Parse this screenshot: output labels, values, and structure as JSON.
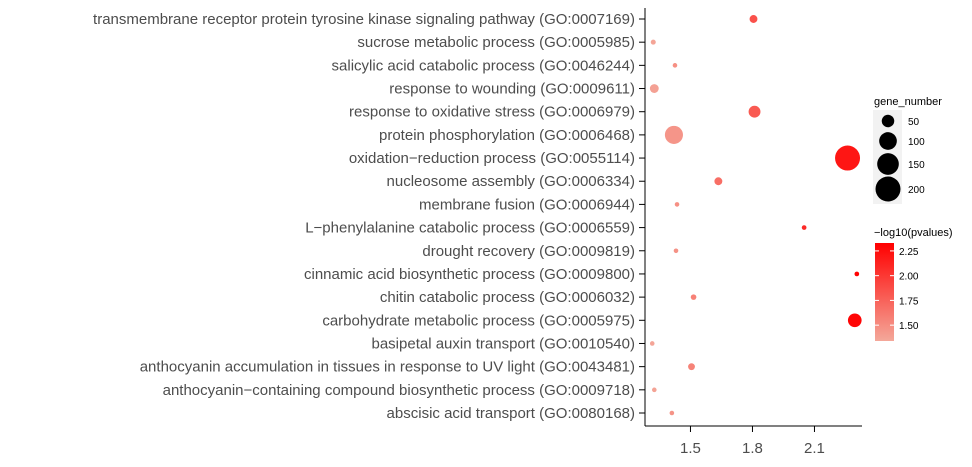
{
  "chart_data": {
    "type": "scatter",
    "title": "",
    "xlabel": "",
    "ylabel": "",
    "xlim": [
      1.28,
      2.33
    ],
    "x_ticks": [
      "1.5",
      "1.8",
      "2.1"
    ],
    "x_tick_values": [
      1.5,
      1.8,
      2.1
    ],
    "grid": false,
    "legend_placement": "right",
    "color_low": "#f4a89a",
    "color_high": "#ff0000",
    "terms": [
      {
        "label": "transmembrane receptor protein tyrosine kinase signaling pathway (GO:0007169)",
        "x": 1.805,
        "gene_number": 20,
        "log10p": 1.85
      },
      {
        "label": "sucrose metabolic process (GO:0005985)",
        "x": 1.32,
        "gene_number": 8,
        "log10p": 1.36
      },
      {
        "label": "salicylic acid catabolic process (GO:0046244)",
        "x": 1.425,
        "gene_number": 5,
        "log10p": 1.48
      },
      {
        "label": "response to wounding (GO:0009611)",
        "x": 1.325,
        "gene_number": 25,
        "log10p": 1.38
      },
      {
        "label": "response to oxidative stress (GO:0006979)",
        "x": 1.81,
        "gene_number": 45,
        "log10p": 1.8
      },
      {
        "label": "protein phosphorylation (GO:0006468)",
        "x": 1.42,
        "gene_number": 105,
        "log10p": 1.45
      },
      {
        "label": "oxidation−reduction process (GO:0055114)",
        "x": 2.26,
        "gene_number": 200,
        "log10p": 2.2
      },
      {
        "label": "nucleosome assembly (GO:0006334)",
        "x": 1.635,
        "gene_number": 20,
        "log10p": 1.68
      },
      {
        "label": "membrane fusion (GO:0006944)",
        "x": 1.435,
        "gene_number": 5,
        "log10p": 1.48
      },
      {
        "label": "L−phenylalanine catabolic process (GO:0006559)",
        "x": 2.05,
        "gene_number": 7,
        "log10p": 2.08
      },
      {
        "label": "drought recovery (GO:0009819)",
        "x": 1.43,
        "gene_number": 5,
        "log10p": 1.47
      },
      {
        "label": "cinnamic acid biosynthetic process (GO:0009800)",
        "x": 2.305,
        "gene_number": 7,
        "log10p": 2.32
      },
      {
        "label": "chitin catabolic process (GO:0006032)",
        "x": 1.515,
        "gene_number": 10,
        "log10p": 1.57
      },
      {
        "label": "carbohydrate metabolic process (GO:0005975)",
        "x": 2.295,
        "gene_number": 60,
        "log10p": 2.3
      },
      {
        "label": "basipetal auxin transport (GO:0010540)",
        "x": 1.315,
        "gene_number": 5,
        "log10p": 1.36
      },
      {
        "label": "anthocyanin accumulation in tissues in response to UV light (GO:0043481)",
        "x": 1.505,
        "gene_number": 15,
        "log10p": 1.56
      },
      {
        "label": "anthocyanin−containing compound biosynthetic process (GO:0009718)",
        "x": 1.325,
        "gene_number": 6,
        "log10p": 1.37
      },
      {
        "label": "abscisic acid transport (GO:0080168)",
        "x": 1.41,
        "gene_number": 5,
        "log10p": 1.46
      }
    ],
    "size_legend": {
      "title": "gene_number",
      "breaks": [
        "50",
        "100",
        "150",
        "200"
      ],
      "break_values": [
        50,
        100,
        150,
        200
      ]
    },
    "color_legend": {
      "title": "−log10(pvalues)",
      "breaks": [
        "2.25",
        "2.00",
        "1.75",
        "1.50"
      ],
      "break_values": [
        2.25,
        2.0,
        1.75,
        1.5
      ],
      "range": [
        1.34,
        2.33
      ]
    }
  }
}
